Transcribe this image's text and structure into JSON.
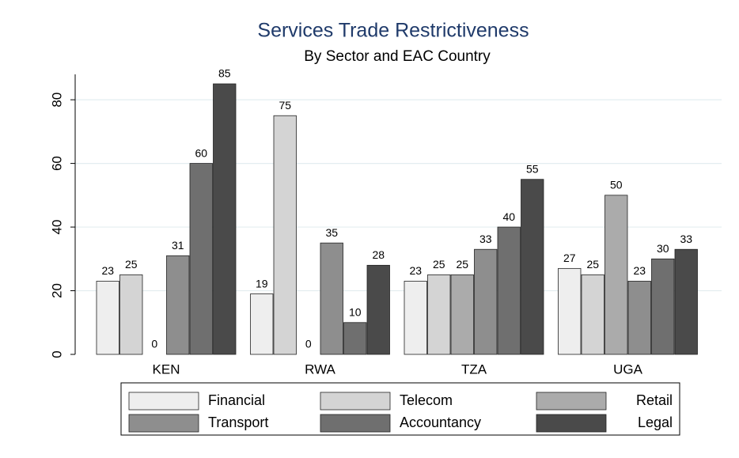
{
  "chart_data": {
    "type": "bar",
    "title": "Services Trade Restrictiveness",
    "subtitle": "By Sector and EAC Country",
    "categories": [
      "KEN",
      "RWA",
      "TZA",
      "UGA"
    ],
    "series": [
      {
        "name": "Financial",
        "color": "#eeeeee",
        "values": [
          23,
          19,
          23,
          27
        ]
      },
      {
        "name": "Telecom",
        "color": "#d4d4d4",
        "values": [
          25,
          75,
          25,
          25
        ]
      },
      {
        "name": "Retail",
        "color": "#ababab",
        "values": [
          0,
          0,
          25,
          50
        ]
      },
      {
        "name": "Transport",
        "color": "#8e8e8e",
        "values": [
          31,
          35,
          33,
          23
        ]
      },
      {
        "name": "Accountancy",
        "color": "#6f6f6f",
        "values": [
          60,
          10,
          40,
          30
        ]
      },
      {
        "name": "Legal",
        "color": "#4a4a4a",
        "values": [
          85,
          28,
          55,
          33
        ]
      }
    ],
    "ylim": [
      0,
      85
    ],
    "yticks": [
      0,
      20,
      40,
      60,
      80
    ],
    "grid": true,
    "legend": "bottom"
  }
}
